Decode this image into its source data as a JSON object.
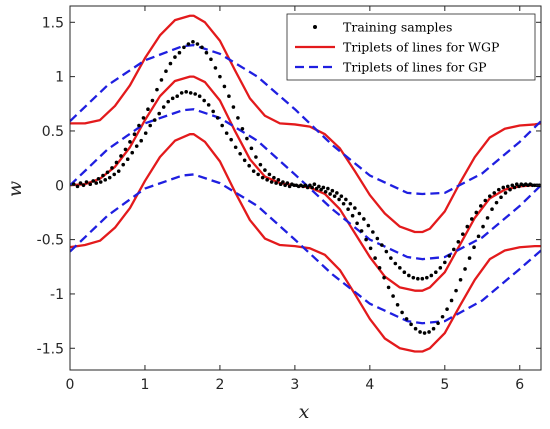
{
  "chart_data": {
    "type": "line",
    "xlabel": "x",
    "ylabel": "w",
    "xlim": [
      0,
      6.2832
    ],
    "ylim": [
      -1.7,
      1.65
    ],
    "xticks": [
      0,
      1,
      2,
      3,
      4,
      5,
      6
    ],
    "yticks": [
      -1.5,
      -1,
      -0.5,
      0,
      0.5,
      1,
      1.5
    ],
    "xtick_labels": [
      "0",
      "1",
      "2",
      "3",
      "4",
      "5",
      "6"
    ],
    "ytick_labels": [
      "-1.5",
      "-1",
      "-0.5",
      "0",
      "0.5",
      "1",
      "1.5"
    ],
    "grid": false,
    "legend_position": "top-right",
    "legend": [
      {
        "label": "Training samples",
        "style": "dots",
        "color": "#000000"
      },
      {
        "label": "Triplets of lines for WGP",
        "style": "solid",
        "color": "#e31a1c"
      },
      {
        "label": "Triplets of lines for GP",
        "style": "dashed",
        "color": "#1f1fe0"
      }
    ],
    "samples": {
      "name": "Training samples",
      "points": [
        [
          0.05,
          0.01
        ],
        [
          0.1,
          -0.01
        ],
        [
          0.14,
          0.02
        ],
        [
          0.18,
          0.0
        ],
        [
          0.22,
          0.03
        ],
        [
          0.27,
          0.01
        ],
        [
          0.31,
          0.04
        ],
        [
          0.35,
          0.02
        ],
        [
          0.38,
          0.06
        ],
        [
          0.41,
          0.03
        ],
        [
          0.44,
          0.09
        ],
        [
          0.47,
          0.05
        ],
        [
          0.5,
          0.12
        ],
        [
          0.53,
          0.07
        ],
        [
          0.56,
          0.16
        ],
        [
          0.59,
          0.1
        ],
        [
          0.62,
          0.21
        ],
        [
          0.65,
          0.13
        ],
        [
          0.68,
          0.27
        ],
        [
          0.71,
          0.19
        ],
        [
          0.74,
          0.33
        ],
        [
          0.77,
          0.24
        ],
        [
          0.8,
          0.4
        ],
        [
          0.83,
          0.3
        ],
        [
          0.86,
          0.47
        ],
        [
          0.89,
          0.36
        ],
        [
          0.92,
          0.55
        ],
        [
          0.95,
          0.41
        ],
        [
          0.98,
          0.62
        ],
        [
          1.01,
          0.48
        ],
        [
          1.04,
          0.7
        ],
        [
          1.07,
          0.55
        ],
        [
          1.1,
          0.78
        ],
        [
          1.13,
          0.6
        ],
        [
          1.16,
          0.88
        ],
        [
          1.19,
          0.66
        ],
        [
          1.22,
          0.97
        ],
        [
          1.25,
          0.72
        ],
        [
          1.28,
          1.05
        ],
        [
          1.31,
          0.77
        ],
        [
          1.34,
          1.12
        ],
        [
          1.37,
          0.8
        ],
        [
          1.4,
          1.18
        ],
        [
          1.43,
          0.82
        ],
        [
          1.46,
          1.22
        ],
        [
          1.49,
          0.85
        ],
        [
          1.52,
          1.27
        ],
        [
          1.55,
          0.86
        ],
        [
          1.58,
          1.3
        ],
        [
          1.61,
          0.85
        ],
        [
          1.64,
          1.32
        ],
        [
          1.67,
          0.84
        ],
        [
          1.7,
          1.3
        ],
        [
          1.73,
          0.82
        ],
        [
          1.76,
          1.27
        ],
        [
          1.79,
          0.78
        ],
        [
          1.82,
          1.22
        ],
        [
          1.85,
          0.74
        ],
        [
          1.88,
          1.16
        ],
        [
          1.91,
          0.68
        ],
        [
          1.94,
          1.08
        ],
        [
          1.97,
          0.62
        ],
        [
          2.0,
          1.0
        ],
        [
          2.03,
          0.55
        ],
        [
          2.06,
          0.91
        ],
        [
          2.09,
          0.48
        ],
        [
          2.12,
          0.82
        ],
        [
          2.15,
          0.42
        ],
        [
          2.18,
          0.72
        ],
        [
          2.21,
          0.35
        ],
        [
          2.24,
          0.62
        ],
        [
          2.27,
          0.29
        ],
        [
          2.3,
          0.52
        ],
        [
          2.33,
          0.23
        ],
        [
          2.36,
          0.43
        ],
        [
          2.39,
          0.18
        ],
        [
          2.42,
          0.34
        ],
        [
          2.45,
          0.13
        ],
        [
          2.48,
          0.26
        ],
        [
          2.51,
          0.1
        ],
        [
          2.54,
          0.19
        ],
        [
          2.57,
          0.07
        ],
        [
          2.6,
          0.14
        ],
        [
          2.63,
          0.05
        ],
        [
          2.66,
          0.1
        ],
        [
          2.69,
          0.03
        ],
        [
          2.72,
          0.07
        ],
        [
          2.75,
          0.02
        ],
        [
          2.78,
          0.05
        ],
        [
          2.81,
          0.01
        ],
        [
          2.84,
          0.03
        ],
        [
          2.87,
          0.0
        ],
        [
          2.9,
          0.02
        ],
        [
          2.93,
          -0.01
        ],
        [
          2.96,
          0.01
        ],
        [
          2.99,
          0.0
        ],
        [
          3.02,
          0.0
        ],
        [
          3.05,
          -0.01
        ],
        [
          3.08,
          0.0
        ],
        [
          3.11,
          -0.01
        ],
        [
          3.14,
          0.0
        ],
        [
          3.17,
          -0.02
        ],
        [
          3.2,
          0.0
        ],
        [
          3.23,
          -0.02
        ],
        [
          3.26,
          0.01
        ],
        [
          3.29,
          -0.03
        ],
        [
          3.32,
          -0.01
        ],
        [
          3.35,
          -0.04
        ],
        [
          3.38,
          -0.02
        ],
        [
          3.41,
          -0.06
        ],
        [
          3.44,
          -0.03
        ],
        [
          3.47,
          -0.08
        ],
        [
          3.5,
          -0.05
        ],
        [
          3.53,
          -0.1
        ],
        [
          3.56,
          -0.07
        ],
        [
          3.59,
          -0.13
        ],
        [
          3.62,
          -0.1
        ],
        [
          3.65,
          -0.17
        ],
        [
          3.68,
          -0.13
        ],
        [
          3.71,
          -0.22
        ],
        [
          3.74,
          -0.17
        ],
        [
          3.77,
          -0.28
        ],
        [
          3.8,
          -0.21
        ],
        [
          3.83,
          -0.35
        ],
        [
          3.86,
          -0.26
        ],
        [
          3.89,
          -0.42
        ],
        [
          3.92,
          -0.31
        ],
        [
          3.95,
          -0.5
        ],
        [
          3.98,
          -0.37
        ],
        [
          4.01,
          -0.58
        ],
        [
          4.04,
          -0.43
        ],
        [
          4.07,
          -0.67
        ],
        [
          4.1,
          -0.49
        ],
        [
          4.13,
          -0.76
        ],
        [
          4.16,
          -0.55
        ],
        [
          4.19,
          -0.85
        ],
        [
          4.22,
          -0.61
        ],
        [
          4.25,
          -0.94
        ],
        [
          4.28,
          -0.67
        ],
        [
          4.31,
          -1.02
        ],
        [
          4.34,
          -0.72
        ],
        [
          4.37,
          -1.1
        ],
        [
          4.4,
          -0.76
        ],
        [
          4.43,
          -1.17
        ],
        [
          4.46,
          -0.8
        ],
        [
          4.49,
          -1.23
        ],
        [
          4.52,
          -0.83
        ],
        [
          4.55,
          -1.28
        ],
        [
          4.58,
          -0.85
        ],
        [
          4.61,
          -1.32
        ],
        [
          4.64,
          -0.86
        ],
        [
          4.67,
          -1.35
        ],
        [
          4.7,
          -0.86
        ],
        [
          4.73,
          -1.36
        ],
        [
          4.76,
          -0.85
        ],
        [
          4.79,
          -1.35
        ],
        [
          4.82,
          -0.83
        ],
        [
          4.85,
          -1.32
        ],
        [
          4.88,
          -0.8
        ],
        [
          4.91,
          -1.27
        ],
        [
          4.94,
          -0.76
        ],
        [
          4.97,
          -1.21
        ],
        [
          5.0,
          -0.71
        ],
        [
          5.03,
          -1.14
        ],
        [
          5.06,
          -0.65
        ],
        [
          5.09,
          -1.06
        ],
        [
          5.12,
          -0.59
        ],
        [
          5.15,
          -0.97
        ],
        [
          5.18,
          -0.52
        ],
        [
          5.21,
          -0.87
        ],
        [
          5.24,
          -0.45
        ],
        [
          5.27,
          -0.77
        ],
        [
          5.3,
          -0.38
        ],
        [
          5.33,
          -0.67
        ],
        [
          5.36,
          -0.31
        ],
        [
          5.39,
          -0.57
        ],
        [
          5.42,
          -0.25
        ],
        [
          5.45,
          -0.47
        ],
        [
          5.48,
          -0.19
        ],
        [
          5.51,
          -0.38
        ],
        [
          5.54,
          -0.14
        ],
        [
          5.57,
          -0.3
        ],
        [
          5.6,
          -0.1
        ],
        [
          5.63,
          -0.22
        ],
        [
          5.66,
          -0.07
        ],
        [
          5.69,
          -0.16
        ],
        [
          5.72,
          -0.04
        ],
        [
          5.75,
          -0.11
        ],
        [
          5.78,
          -0.02
        ],
        [
          5.81,
          -0.07
        ],
        [
          5.84,
          -0.01
        ],
        [
          5.87,
          -0.04
        ],
        [
          5.9,
          0.0
        ],
        [
          5.93,
          -0.02
        ],
        [
          5.96,
          0.01
        ],
        [
          5.99,
          -0.01
        ],
        [
          6.02,
          0.01
        ],
        [
          6.05,
          0.0
        ],
        [
          6.08,
          0.01
        ],
        [
          6.11,
          0.0
        ],
        [
          6.14,
          0.01
        ],
        [
          6.17,
          0.0
        ],
        [
          6.2,
          0.0
        ],
        [
          6.23,
          0.0
        ],
        [
          6.26,
          0.0
        ]
      ]
    },
    "series": [
      {
        "group": "WGP",
        "role": "mean",
        "color": "#e31a1c",
        "dash": "solid",
        "x": [
          0,
          0.2,
          0.4,
          0.6,
          0.8,
          1.0,
          1.2,
          1.4,
          1.6,
          1.65,
          1.8,
          2.0,
          2.2,
          2.4,
          2.6,
          2.8,
          3.0,
          3.2,
          3.4,
          3.6,
          3.8,
          4.0,
          4.2,
          4.4,
          4.6,
          4.7,
          4.8,
          5.0,
          5.2,
          5.4,
          5.6,
          5.8,
          6.0,
          6.2,
          6.2832
        ],
        "values": [
          0,
          0.01,
          0.06,
          0.17,
          0.35,
          0.6,
          0.82,
          0.96,
          1.0,
          1.0,
          0.95,
          0.78,
          0.5,
          0.24,
          0.08,
          0.02,
          0.0,
          -0.02,
          -0.08,
          -0.22,
          -0.44,
          -0.66,
          -0.84,
          -0.94,
          -0.97,
          -0.97,
          -0.94,
          -0.8,
          -0.55,
          -0.3,
          -0.12,
          -0.04,
          -0.01,
          0.0,
          0.0
        ]
      },
      {
        "group": "WGP",
        "role": "upper",
        "color": "#e31a1c",
        "dash": "solid",
        "x": [
          0,
          0.2,
          0.4,
          0.6,
          0.8,
          1.0,
          1.2,
          1.4,
          1.6,
          1.65,
          1.8,
          2.0,
          2.2,
          2.4,
          2.6,
          2.8,
          3.0,
          3.2,
          3.4,
          3.6,
          3.8,
          4.0,
          4.2,
          4.4,
          4.6,
          4.7,
          4.8,
          5.0,
          5.2,
          5.4,
          5.6,
          5.8,
          6.0,
          6.2,
          6.2832
        ],
        "values": [
          0.57,
          0.57,
          0.6,
          0.73,
          0.92,
          1.17,
          1.38,
          1.52,
          1.56,
          1.56,
          1.5,
          1.33,
          1.06,
          0.8,
          0.64,
          0.57,
          0.56,
          0.54,
          0.47,
          0.34,
          0.13,
          -0.09,
          -0.26,
          -0.38,
          -0.43,
          -0.43,
          -0.4,
          -0.24,
          0.02,
          0.26,
          0.44,
          0.52,
          0.55,
          0.56,
          0.57
        ]
      },
      {
        "group": "WGP",
        "role": "lower",
        "color": "#e31a1c",
        "dash": "solid",
        "x": [
          0,
          0.2,
          0.4,
          0.6,
          0.8,
          1.0,
          1.2,
          1.4,
          1.6,
          1.65,
          1.8,
          2.0,
          2.2,
          2.4,
          2.6,
          2.8,
          3.0,
          3.2,
          3.4,
          3.6,
          3.8,
          4.0,
          4.2,
          4.4,
          4.6,
          4.7,
          4.8,
          5.0,
          5.2,
          5.4,
          5.6,
          5.8,
          6.0,
          6.2,
          6.2832
        ],
        "values": [
          -0.57,
          -0.55,
          -0.51,
          -0.39,
          -0.21,
          0.04,
          0.26,
          0.41,
          0.47,
          0.47,
          0.4,
          0.22,
          -0.06,
          -0.32,
          -0.49,
          -0.55,
          -0.56,
          -0.58,
          -0.64,
          -0.78,
          -1.0,
          -1.23,
          -1.41,
          -1.5,
          -1.53,
          -1.53,
          -1.5,
          -1.36,
          -1.11,
          -0.87,
          -0.68,
          -0.6,
          -0.57,
          -0.56,
          -0.56
        ]
      },
      {
        "group": "GP",
        "role": "mean",
        "color": "#1f1fe0",
        "dash": "dashed",
        "x": [
          0,
          0.5,
          1.0,
          1.5,
          1.65,
          2.0,
          2.5,
          3.0,
          3.5,
          4.0,
          4.5,
          4.7,
          5.0,
          5.5,
          6.0,
          6.2832
        ],
        "values": [
          0,
          0.33,
          0.57,
          0.69,
          0.7,
          0.62,
          0.41,
          0.1,
          -0.22,
          -0.5,
          -0.66,
          -0.68,
          -0.66,
          -0.48,
          -0.19,
          0.0
        ]
      },
      {
        "group": "GP",
        "role": "upper",
        "color": "#1f1fe0",
        "dash": "dashed",
        "x": [
          0,
          0.5,
          1.0,
          1.5,
          1.65,
          2.0,
          2.5,
          3.0,
          3.5,
          4.0,
          4.5,
          4.7,
          5.0,
          5.5,
          6.0,
          6.2832
        ],
        "values": [
          0.59,
          0.92,
          1.15,
          1.28,
          1.29,
          1.21,
          1.0,
          0.7,
          0.37,
          0.09,
          -0.07,
          -0.08,
          -0.07,
          0.11,
          0.4,
          0.59
        ]
      },
      {
        "group": "GP",
        "role": "lower",
        "color": "#1f1fe0",
        "dash": "dashed",
        "x": [
          0,
          0.5,
          1.0,
          1.5,
          1.65,
          2.0,
          2.5,
          3.0,
          3.5,
          4.0,
          4.5,
          4.7,
          5.0,
          5.5,
          6.0,
          6.2832
        ],
        "values": [
          -0.61,
          -0.28,
          -0.03,
          0.09,
          0.1,
          0.02,
          -0.19,
          -0.5,
          -0.82,
          -1.09,
          -1.25,
          -1.27,
          -1.25,
          -1.06,
          -0.77,
          -0.6
        ]
      }
    ]
  }
}
